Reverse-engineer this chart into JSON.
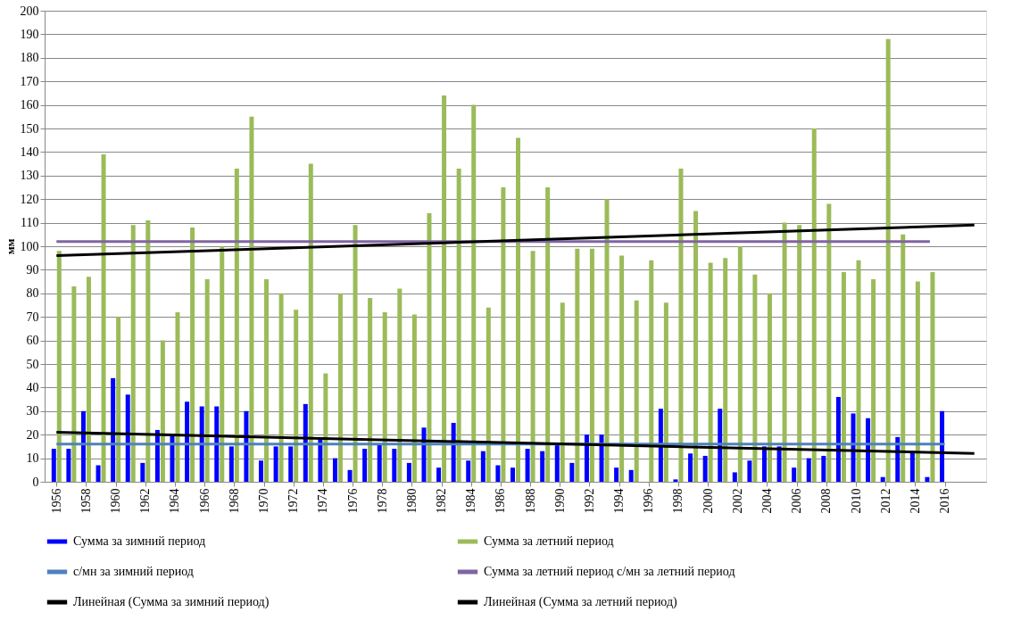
{
  "chart_data": {
    "type": "bar",
    "ylabel": "мм",
    "x": [
      1956,
      1957,
      1958,
      1959,
      1960,
      1961,
      1962,
      1963,
      1964,
      1965,
      1966,
      1967,
      1968,
      1969,
      1970,
      1971,
      1972,
      1973,
      1974,
      1975,
      1976,
      1977,
      1978,
      1979,
      1980,
      1981,
      1982,
      1983,
      1984,
      1985,
      1986,
      1987,
      1988,
      1989,
      1990,
      1991,
      1992,
      1993,
      1994,
      1995,
      1996,
      1997,
      1998,
      1999,
      2000,
      2001,
      2002,
      2003,
      2004,
      2005,
      2006,
      2007,
      2008,
      2009,
      2010,
      2011,
      2012,
      2013,
      2014,
      2015,
      2016
    ],
    "series": [
      {
        "type": "bar",
        "name": "Сумма за зимний период",
        "color": "#0000ff",
        "values": [
          14,
          14,
          30,
          7,
          44,
          37,
          8,
          22,
          20,
          34,
          32,
          32,
          15,
          30,
          9,
          15,
          15,
          33,
          18,
          10,
          5,
          14,
          16,
          14,
          8,
          23,
          6,
          25,
          9,
          13,
          7,
          6,
          14,
          13,
          16,
          8,
          20,
          20,
          6,
          5,
          null,
          31,
          1,
          12,
          11,
          31,
          4,
          9,
          15,
          15,
          6,
          10,
          11,
          36,
          29,
          27,
          2,
          19,
          13,
          2,
          30
        ]
      },
      {
        "type": "bar",
        "name": "Сумма за летний период",
        "color": "#9bbb59",
        "values": [
          98,
          83,
          87,
          139,
          70,
          109,
          111,
          60,
          72,
          108,
          86,
          100,
          133,
          155,
          86,
          80,
          73,
          135,
          46,
          80,
          109,
          78,
          72,
          82,
          71,
          114,
          164,
          133,
          160,
          74,
          125,
          146,
          98,
          125,
          76,
          99,
          99,
          120,
          96,
          77,
          94,
          76,
          133,
          115,
          93,
          95,
          100,
          88,
          80,
          110,
          109,
          150,
          118,
          89,
          94,
          86,
          188,
          105,
          85,
          89,
          null
        ]
      },
      {
        "type": "line",
        "name": "с/мн за зимний период",
        "color": "#4f81bd",
        "x": [
          1956,
          2016
        ],
        "values": [
          16,
          16
        ]
      },
      {
        "type": "line",
        "name": "Сумма за летний период с/мн за летний период",
        "color": "#8064a2",
        "x": [
          1956,
          2015
        ],
        "values": [
          102,
          102
        ]
      },
      {
        "type": "line",
        "name": "Линейная (Сумма за зимний период)",
        "color": "#000000",
        "x": [
          1956,
          2018
        ],
        "values": [
          21,
          12
        ]
      },
      {
        "type": "line",
        "name": "Линейная (Сумма за летний период)",
        "color": "#000000",
        "x": [
          1956,
          2018
        ],
        "values": [
          96,
          109
        ]
      }
    ],
    "xlim": [
      1955.5,
      2018.5
    ],
    "xticks": [
      1956,
      1958,
      1960,
      1962,
      1964,
      1966,
      1968,
      1970,
      1972,
      1974,
      1976,
      1978,
      1980,
      1982,
      1984,
      1986,
      1988,
      1990,
      1992,
      1994,
      1996,
      1998,
      2000,
      2002,
      2004,
      2006,
      2008,
      2010,
      2012,
      2014,
      2016
    ],
    "ylim": [
      0,
      200
    ],
    "yticks": [
      0,
      10,
      20,
      30,
      40,
      50,
      60,
      70,
      80,
      90,
      100,
      110,
      120,
      130,
      140,
      150,
      160,
      170,
      180,
      190,
      200
    ],
    "grid": "y",
    "legend": "bottom"
  }
}
